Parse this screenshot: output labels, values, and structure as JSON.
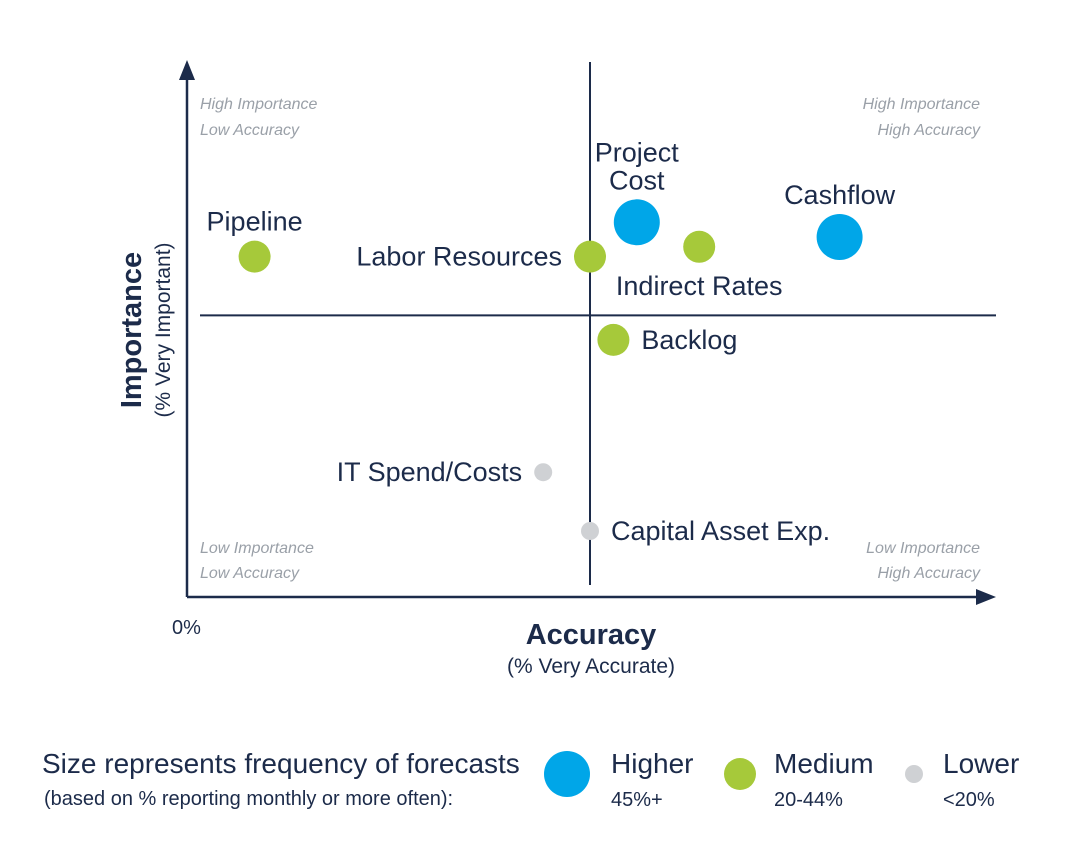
{
  "colors": {
    "high": "#00a6e8",
    "medium": "#a6c93a",
    "low": "#cfd1d4",
    "axis": "#1c2b4a",
    "corner_text": "#9aa0a8"
  },
  "chart_data": {
    "type": "scatter",
    "title": "",
    "xlabel": "Accuracy",
    "xlabel_sub": "(% Very Accurate)",
    "ylabel": "Importance",
    "ylabel_sub": "(% Very Important)",
    "origin_label": "0%",
    "xlim": [
      0,
      100
    ],
    "ylim": [
      0,
      100
    ],
    "x_divider": 50,
    "y_divider": 54,
    "quadrants": {
      "top_left": [
        "High Importance",
        "Low Accuracy"
      ],
      "top_right": [
        "High Importance",
        "High Accuracy"
      ],
      "bottom_left": [
        "Low Importance",
        "Low Accuracy"
      ],
      "bottom_right": [
        "Low Importance",
        "High Accuracy"
      ]
    },
    "points": [
      {
        "name": "Pipeline",
        "label_lines": [
          "Pipeline"
        ],
        "x": 7,
        "y": 66,
        "size": "medium",
        "label_pos": "above"
      },
      {
        "name": "Labor Resources",
        "label_lines": [
          "Labor Resources"
        ],
        "x": 50,
        "y": 66,
        "size": "medium",
        "label_pos": "left"
      },
      {
        "name": "Project Cost",
        "label_lines": [
          "Project",
          "Cost"
        ],
        "x": 56,
        "y": 73,
        "size": "high",
        "label_pos": "above"
      },
      {
        "name": "Indirect Rates",
        "label_lines": [
          "Indirect Rates"
        ],
        "x": 64,
        "y": 68,
        "size": "medium",
        "label_pos": "below"
      },
      {
        "name": "Cashflow",
        "label_lines": [
          "Cashflow"
        ],
        "x": 82,
        "y": 70,
        "size": "high",
        "label_pos": "above"
      },
      {
        "name": "Backlog",
        "label_lines": [
          "Backlog"
        ],
        "x": 53,
        "y": 49,
        "size": "medium",
        "label_pos": "right"
      },
      {
        "name": "IT Spend/Costs",
        "label_lines": [
          "IT Spend/Costs"
        ],
        "x": 44,
        "y": 22,
        "size": "low",
        "label_pos": "left"
      },
      {
        "name": "Capital Asset Exp.",
        "label_lines": [
          "Capital Asset Exp."
        ],
        "x": 50,
        "y": 10,
        "size": "low",
        "label_pos": "right"
      }
    ],
    "legend": {
      "title": "Size represents frequency of forecasts",
      "subtitle": "(based on % reporting monthly or more often):",
      "items": [
        {
          "key": "high",
          "name": "Higher",
          "range": "45%+"
        },
        {
          "key": "medium",
          "name": "Medium",
          "range": "20-44%"
        },
        {
          "key": "low",
          "name": "Lower",
          "range": "<20%"
        }
      ]
    }
  }
}
